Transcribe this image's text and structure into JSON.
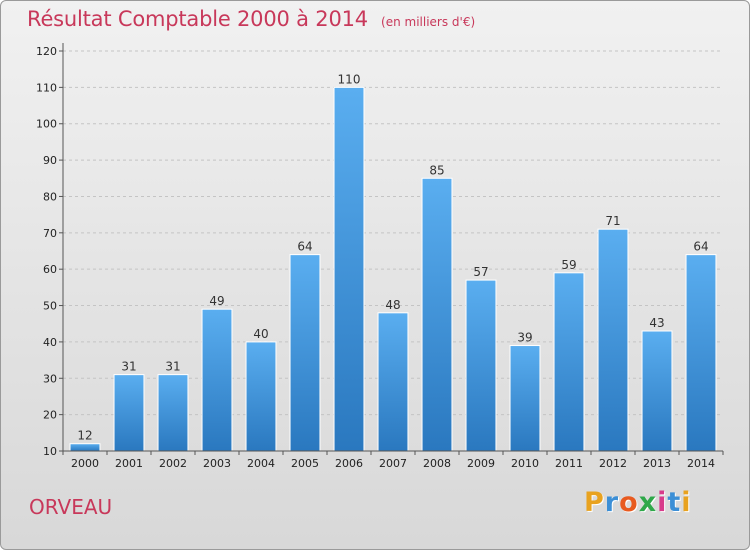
{
  "header": {
    "title": "Résultat Comptable 2000 à 2014",
    "subtitle": "(en milliers d'€)"
  },
  "footer": {
    "location": "ORVEAU",
    "logo_letters": [
      "P",
      "r",
      "o",
      "x",
      "i",
      "t",
      "i"
    ],
    "logo_colors": [
      "#e8a21f",
      "#3c8fd6",
      "#e85a1f",
      "#2fa84a",
      "#d83a8a",
      "#3c8fd6",
      "#e8a21f"
    ]
  },
  "colors": {
    "bar_top": "#5aaef0",
    "bar_bottom": "#2a78bf",
    "title": "#c8385a"
  },
  "chart_data": {
    "type": "bar",
    "title": "Résultat Comptable 2000 à 2014",
    "subtitle": "(en milliers d'€)",
    "xlabel": "",
    "ylabel": "",
    "categories": [
      "2000",
      "2001",
      "2002",
      "2003",
      "2004",
      "2005",
      "2006",
      "2007",
      "2008",
      "2009",
      "2010",
      "2011",
      "2012",
      "2013",
      "2014"
    ],
    "values": [
      12,
      31,
      31,
      49,
      40,
      64,
      110,
      48,
      85,
      57,
      39,
      59,
      71,
      43,
      64
    ],
    "value_labels": [
      "12",
      "31",
      "31",
      "49",
      "40",
      "64",
      "110",
      "48",
      "85",
      "57",
      "39",
      "59",
      "71",
      "43",
      "64"
    ],
    "ylim": [
      10,
      120
    ],
    "yticks": [
      10,
      20,
      30,
      40,
      50,
      60,
      70,
      80,
      90,
      100,
      110,
      120
    ],
    "yticklabels": [
      "10",
      "20",
      "30",
      "40",
      "50",
      "60",
      "70",
      "80",
      "90",
      "100",
      "110",
      "120"
    ],
    "grid": true
  }
}
